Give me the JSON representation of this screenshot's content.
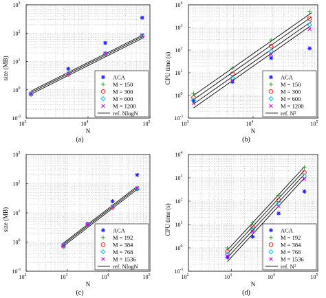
{
  "figure": {
    "captions": [
      "(a)",
      "(b)",
      "(c)",
      "(d)"
    ]
  },
  "chart_data": [
    {
      "id": "a",
      "type": "scatter",
      "caption": "(a)",
      "xlabel": "N",
      "ylabel": "size (MB)",
      "xscale": "log",
      "yscale": "log",
      "xlim": [
        1000,
        100000
      ],
      "ylim": [
        0.1,
        1000
      ],
      "xticks": [
        {
          "exp": "3",
          "value": 1000
        },
        {
          "exp": "4",
          "value": 10000
        },
        {
          "exp": "5",
          "value": 100000
        }
      ],
      "yticks": [
        {
          "exp": "-1",
          "value": 0.1
        },
        {
          "exp": "0",
          "value": 1
        },
        {
          "exp": "1",
          "value": 10
        },
        {
          "exp": "2",
          "value": 100
        },
        {
          "exp": "3",
          "value": 1000
        }
      ],
      "grid": true,
      "legend_position": "bottom-right",
      "series": [
        {
          "name": "ACA",
          "marker": "star",
          "color": "#2222ff",
          "points": [
            [
              1200,
              0.75
            ],
            [
              4800,
              5.5
            ],
            [
              19000,
              45
            ],
            [
              75000,
              350
            ]
          ]
        },
        {
          "name": "M = 150",
          "marker": "plus",
          "color": "#2ca02c",
          "points": [
            [
              1200,
              0.68
            ],
            [
              4800,
              3.4
            ],
            [
              19000,
              18
            ],
            [
              75000,
              78
            ]
          ]
        },
        {
          "name": "M = 300",
          "marker": "circle",
          "color": "#ff2020",
          "points": [
            [
              1200,
              0.7
            ],
            [
              4800,
              3.6
            ],
            [
              19000,
              18.5
            ],
            [
              75000,
              80
            ]
          ]
        },
        {
          "name": "M = 600",
          "marker": "diamond",
          "color": "#00c8e8",
          "points": [
            [
              1200,
              0.72
            ],
            [
              4800,
              3.7
            ],
            [
              19000,
              19
            ],
            [
              75000,
              82
            ]
          ]
        },
        {
          "name": "M = 1200",
          "marker": "cross",
          "color": "#d000d0",
          "points": [
            [
              1200,
              0.73
            ],
            [
              4800,
              3.8
            ],
            [
              19000,
              19.5
            ],
            [
              75000,
              85
            ]
          ]
        }
      ],
      "ref_lines": [
        {
          "name": "ref. NlogN",
          "points": [
            [
              1200,
              0.7
            ],
            [
              80000,
              70
            ]
          ]
        },
        {
          "name": "",
          "points": [
            [
              1200,
              0.8
            ],
            [
              80000,
              80
            ]
          ]
        },
        {
          "name": "",
          "points": [
            [
              1200,
              0.9
            ],
            [
              80000,
              90
            ]
          ]
        }
      ]
    },
    {
      "id": "b",
      "type": "scatter",
      "caption": "(b)",
      "xlabel": "N",
      "ylabel": "CPU time (s)",
      "xscale": "log",
      "yscale": "log",
      "xlim": [
        1000,
        100000
      ],
      "ylim": [
        0.1,
        10000
      ],
      "xticks": [
        {
          "exp": "3",
          "value": 1000
        },
        {
          "exp": "4",
          "value": 10000
        },
        {
          "exp": "5",
          "value": 100000
        }
      ],
      "yticks": [
        {
          "exp": "-1",
          "value": 0.1
        },
        {
          "exp": "0",
          "value": 1
        },
        {
          "exp": "1",
          "value": 10
        },
        {
          "exp": "2",
          "value": 100
        },
        {
          "exp": "3",
          "value": 1000
        },
        {
          "exp": "4",
          "value": 10000
        }
      ],
      "grid": true,
      "legend_position": "bottom-right",
      "series": [
        {
          "name": "ACA",
          "marker": "star",
          "color": "#2222ff",
          "points": [
            [
              1200,
              0.6
            ],
            [
              4800,
              4
            ],
            [
              19000,
              45
            ],
            [
              75000,
              120
            ]
          ]
        },
        {
          "name": "M = 150",
          "marker": "plus",
          "color": "#2ca02c",
          "points": [
            [
              1200,
              1.2
            ],
            [
              4800,
              16
            ],
            [
              19000,
              280
            ],
            [
              75000,
              5000
            ]
          ]
        },
        {
          "name": "M = 300",
          "marker": "circle",
          "color": "#ff2020",
          "points": [
            [
              1200,
              0.8
            ],
            [
              4800,
              9
            ],
            [
              19000,
              150
            ],
            [
              75000,
              2500
            ]
          ]
        },
        {
          "name": "M = 600",
          "marker": "diamond",
          "color": "#00c8e8",
          "points": [
            [
              1200,
              0.6
            ],
            [
              4800,
              6
            ],
            [
              19000,
              90
            ],
            [
              75000,
              1300
            ]
          ]
        },
        {
          "name": "M = 1200",
          "marker": "cross",
          "color": "#d000d0",
          "points": [
            [
              1200,
              0.45
            ],
            [
              4800,
              4.5
            ],
            [
              19000,
              65
            ],
            [
              75000,
              850
            ]
          ]
        }
      ],
      "ref_lines": [
        {
          "name": "ref. N²",
          "points": [
            [
              1200,
              1.0
            ],
            [
              80000,
              4400
            ]
          ]
        },
        {
          "name": "",
          "points": [
            [
              1200,
              0.65
            ],
            [
              80000,
              2900
            ]
          ]
        },
        {
          "name": "",
          "points": [
            [
              1200,
              0.42
            ],
            [
              80000,
              1850
            ]
          ]
        },
        {
          "name": "",
          "points": [
            [
              1200,
              0.28
            ],
            [
              80000,
              1250
            ]
          ]
        }
      ]
    },
    {
      "id": "c",
      "type": "scatter",
      "caption": "(c)",
      "xlabel": "N",
      "ylabel": "size (MB)",
      "xscale": "log",
      "yscale": "log",
      "xlim": [
        100,
        100000
      ],
      "ylim": [
        0.1,
        1000
      ],
      "xticks": [
        {
          "exp": "2",
          "value": 100
        },
        {
          "exp": "3",
          "value": 1000
        },
        {
          "exp": "4",
          "value": 10000
        },
        {
          "exp": "5",
          "value": 100000
        }
      ],
      "yticks": [
        {
          "exp": "-1",
          "value": 0.1
        },
        {
          "exp": "0",
          "value": 1
        },
        {
          "exp": "1",
          "value": 10
        },
        {
          "exp": "2",
          "value": 100
        },
        {
          "exp": "3",
          "value": 1000
        }
      ],
      "grid": true,
      "legend_position": "bottom-right",
      "series": [
        {
          "name": "ACA",
          "marker": "star",
          "color": "#2222ff",
          "points": [
            [
              800,
              0.8
            ],
            [
              3100,
              4.2
            ],
            [
              12400,
              25
            ],
            [
              49000,
              200
            ]
          ]
        },
        {
          "name": "M = 192",
          "marker": "plus",
          "color": "#2ca02c",
          "points": [
            [
              800,
              0.7
            ],
            [
              3100,
              3.6
            ],
            [
              12400,
              15
            ],
            [
              49000,
              65
            ]
          ]
        },
        {
          "name": "M = 384",
          "marker": "circle",
          "color": "#ff2020",
          "points": [
            [
              800,
              0.72
            ],
            [
              3100,
              3.7
            ],
            [
              12400,
              15.5
            ],
            [
              49000,
              67
            ]
          ]
        },
        {
          "name": "M = 768",
          "marker": "diamond",
          "color": "#00c8e8",
          "points": [
            [
              800,
              0.74
            ],
            [
              3100,
              3.8
            ],
            [
              12400,
              16
            ],
            [
              49000,
              69
            ]
          ]
        },
        {
          "name": "M = 1536",
          "marker": "cross",
          "color": "#d000d0",
          "points": [
            [
              800,
              0.76
            ],
            [
              3100,
              3.9
            ],
            [
              12400,
              16.5
            ],
            [
              49000,
              71
            ]
          ]
        }
      ],
      "ref_lines": [
        {
          "name": "ref. NlogN",
          "points": [
            [
              800,
              0.72
            ],
            [
              50000,
              65
            ]
          ]
        },
        {
          "name": "",
          "points": [
            [
              800,
              0.82
            ],
            [
              50000,
              74
            ]
          ]
        },
        {
          "name": "",
          "points": [
            [
              800,
              0.92
            ],
            [
              50000,
              83
            ]
          ]
        }
      ]
    },
    {
      "id": "d",
      "type": "scatter",
      "caption": "(d)",
      "xlabel": "N",
      "ylabel": "CPU time (s)",
      "xscale": "log",
      "yscale": "log",
      "xlim": [
        100,
        100000
      ],
      "ylim": [
        0.1,
        10000
      ],
      "xticks": [
        {
          "exp": "2",
          "value": 100
        },
        {
          "exp": "3",
          "value": 1000
        },
        {
          "exp": "4",
          "value": 10000
        },
        {
          "exp": "5",
          "value": 100000
        }
      ],
      "yticks": [
        {
          "exp": "-1",
          "value": 0.1
        },
        {
          "exp": "0",
          "value": 1
        },
        {
          "exp": "1",
          "value": 10
        },
        {
          "exp": "2",
          "value": 100
        },
        {
          "exp": "3",
          "value": 1000
        },
        {
          "exp": "4",
          "value": 10000
        }
      ],
      "grid": true,
      "legend_position": "bottom-right",
      "series": [
        {
          "name": "ACA",
          "marker": "star",
          "color": "#2222ff",
          "points": [
            [
              800,
              0.4
            ],
            [
              3100,
              3
            ],
            [
              12400,
              30
            ],
            [
              49000,
              260
            ]
          ]
        },
        {
          "name": "M = 192",
          "marker": "plus",
          "color": "#2ca02c",
          "points": [
            [
              800,
              1.0
            ],
            [
              3100,
              12
            ],
            [
              12400,
              180
            ],
            [
              49000,
              2800
            ]
          ]
        },
        {
          "name": "M = 384",
          "marker": "circle",
          "color": "#ff2020",
          "points": [
            [
              800,
              0.7
            ],
            [
              3100,
              8
            ],
            [
              12400,
              110
            ],
            [
              49000,
              1700
            ]
          ]
        },
        {
          "name": "M = 768",
          "marker": "diamond",
          "color": "#00c8e8",
          "points": [
            [
              800,
              0.55
            ],
            [
              3100,
              6
            ],
            [
              12400,
              80
            ],
            [
              49000,
              1200
            ]
          ]
        },
        {
          "name": "M = 1536",
          "marker": "cross",
          "color": "#d000d0",
          "points": [
            [
              800,
              0.45
            ],
            [
              3100,
              5
            ],
            [
              12400,
              60
            ],
            [
              49000,
              900
            ]
          ]
        }
      ],
      "ref_lines": [
        {
          "name": "ref. N²",
          "points": [
            [
              800,
              0.8
            ],
            [
              50000,
              3100
            ]
          ]
        },
        {
          "name": "",
          "points": [
            [
              800,
              0.55
            ],
            [
              50000,
              2150
            ]
          ]
        },
        {
          "name": "",
          "points": [
            [
              800,
              0.38
            ],
            [
              50000,
              1480
            ]
          ]
        },
        {
          "name": "",
          "points": [
            [
              800,
              0.26
            ],
            [
              50000,
              1020
            ]
          ]
        }
      ]
    }
  ]
}
